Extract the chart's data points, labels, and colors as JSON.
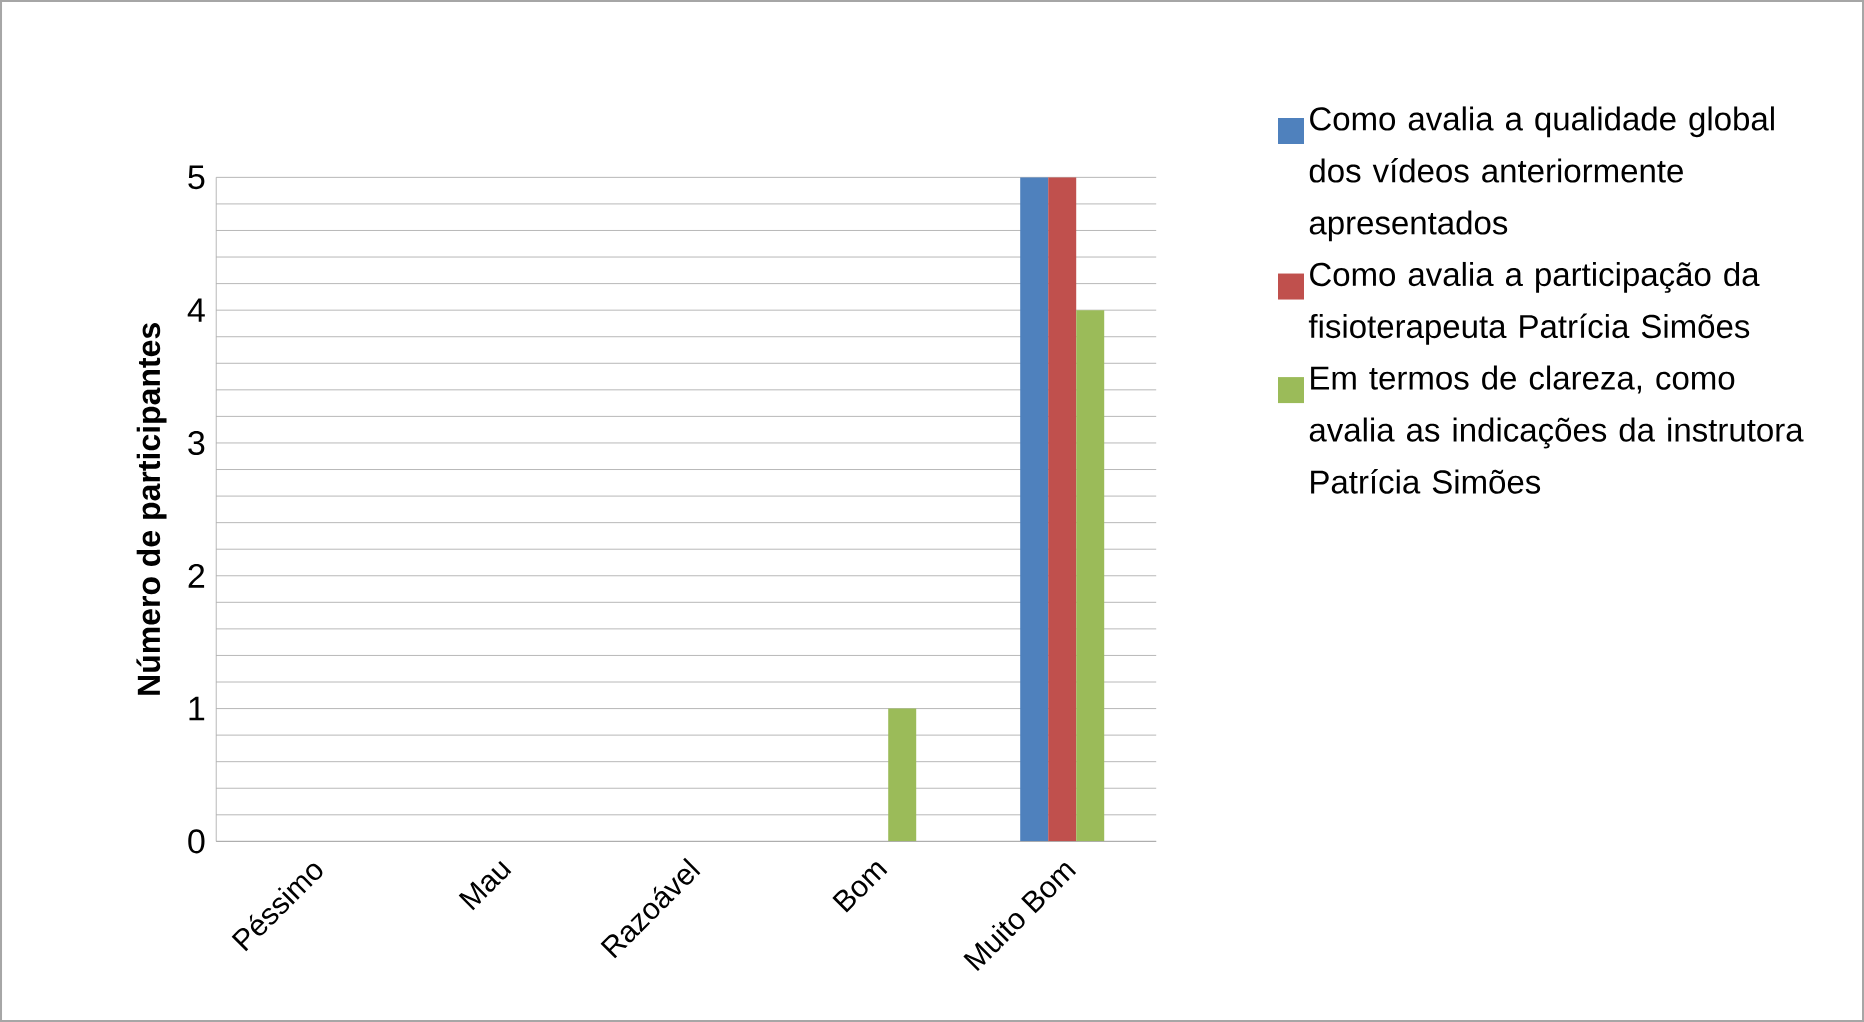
{
  "chart_data": {
    "type": "bar",
    "ylabel": "Número de participantes",
    "categories": [
      "Péssimo",
      "Mau",
      "Razoável",
      "Bom",
      "Muito Bom"
    ],
    "series": [
      {
        "name": "Como avalia a qualidade global dos vídeos anteriormente apresentados",
        "color": "#4f81bd",
        "values": [
          0,
          0,
          0,
          0,
          5
        ]
      },
      {
        "name": "Como avalia a participação da fisioterapeuta Patrícia Simões",
        "color": "#c0504d",
        "values": [
          0,
          0,
          0,
          0,
          5
        ]
      },
      {
        "name": "Em termos de clareza, como avalia as indicações da instrutora Patrícia Simões",
        "color": "#9bbb59",
        "values": [
          0,
          0,
          0,
          1,
          4
        ]
      }
    ],
    "ylim": [
      0,
      5
    ],
    "yticks": [
      0,
      1,
      2,
      3,
      4,
      5
    ],
    "grid": "y",
    "legend": "right"
  }
}
